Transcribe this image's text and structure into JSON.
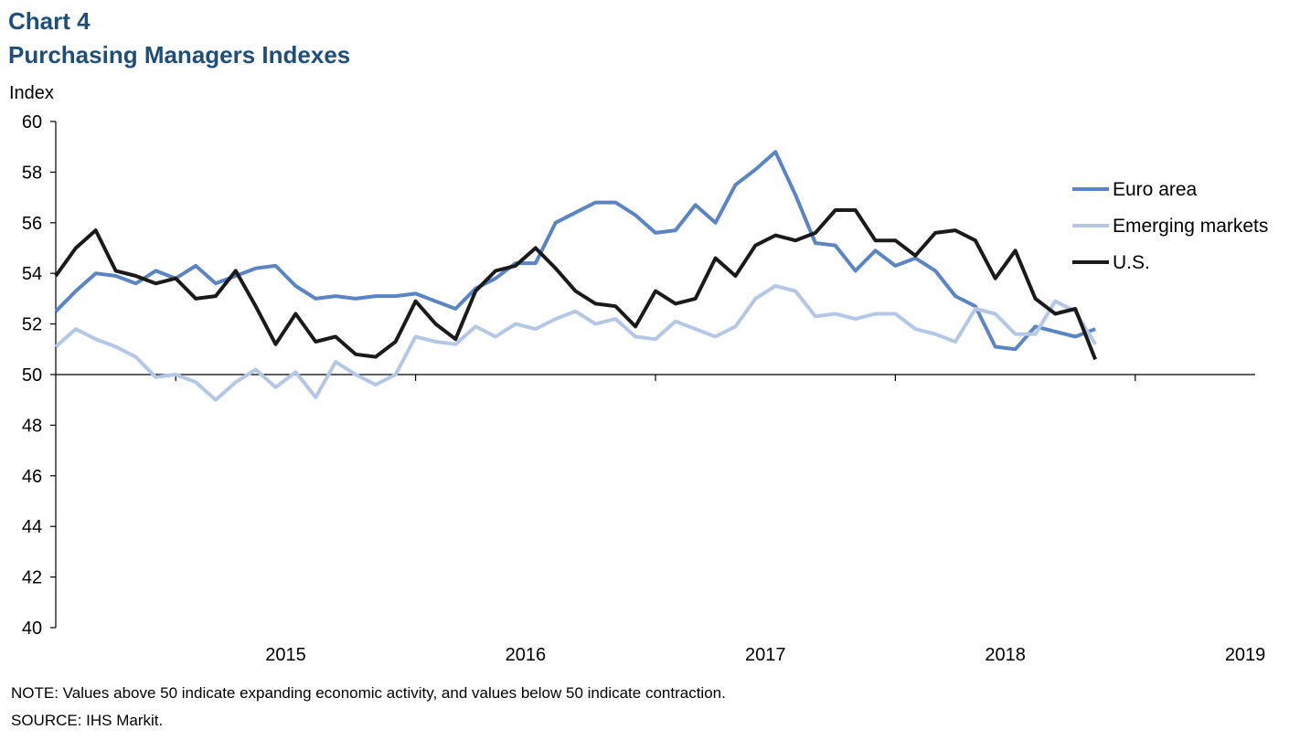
{
  "header": {
    "chart_number": "Chart 4",
    "title": "Purchasing Managers Indexes"
  },
  "footer": {
    "note": "NOTE: Values above 50 indicate expanding economic activity, and values below 50 indicate contraction.",
    "source": "SOURCE: IHS Markit."
  },
  "chart_data": {
    "type": "line",
    "title": "Purchasing Managers Indexes",
    "ylabel": "Index",
    "ylim": [
      40,
      60
    ],
    "yticks": [
      40,
      42,
      44,
      46,
      48,
      50,
      52,
      54,
      56,
      58,
      60
    ],
    "x_axis_crosses_at": 50,
    "x_start": "2014-07",
    "x_end": "2019-07",
    "xtick_labels": [
      "2015",
      "2016",
      "2017",
      "2018",
      "2019"
    ],
    "legend_position": "right",
    "grid": false,
    "series": [
      {
        "name": "Euro area",
        "color": "#5b84c4",
        "values": [
          52.5,
          53.3,
          54.0,
          53.9,
          53.6,
          54.1,
          53.8,
          54.3,
          53.6,
          53.9,
          54.2,
          54.3,
          53.5,
          53.0,
          53.1,
          53.0,
          53.1,
          53.1,
          53.2,
          52.9,
          52.6,
          53.4,
          53.8,
          54.4,
          54.4,
          56.0,
          56.4,
          56.8,
          56.8,
          56.3,
          55.6,
          55.7,
          56.7,
          56.0,
          57.5,
          58.1,
          58.8,
          57.1,
          55.2,
          55.1,
          54.1,
          54.9,
          54.3,
          54.6,
          54.1,
          53.1,
          52.7,
          51.1,
          51.0,
          51.9,
          51.7,
          51.5,
          51.8
        ]
      },
      {
        "name": "Emerging markets",
        "color": "#b4c7e7",
        "values": [
          51.1,
          51.8,
          51.4,
          51.1,
          50.7,
          49.9,
          50.0,
          49.7,
          49.0,
          49.7,
          50.2,
          49.5,
          50.1,
          49.1,
          50.5,
          50.0,
          49.6,
          50.0,
          51.5,
          51.3,
          51.2,
          51.9,
          51.5,
          52.0,
          51.8,
          52.2,
          52.5,
          52.0,
          52.2,
          51.5,
          51.4,
          52.1,
          51.8,
          51.5,
          51.9,
          53.0,
          53.5,
          53.3,
          52.3,
          52.4,
          52.2,
          52.4,
          52.4,
          51.8,
          51.6,
          51.3,
          52.6,
          52.4,
          51.6,
          51.6,
          52.9,
          52.5,
          51.2
        ]
      },
      {
        "name": "U.S.",
        "color": "#1a1a1a",
        "values": [
          53.9,
          55.0,
          55.7,
          54.1,
          53.9,
          53.6,
          53.8,
          53.0,
          53.1,
          54.1,
          52.7,
          51.2,
          52.4,
          51.3,
          51.5,
          50.8,
          50.7,
          51.3,
          52.9,
          52.0,
          51.4,
          53.3,
          54.1,
          54.3,
          55.0,
          54.2,
          53.3,
          52.8,
          52.7,
          51.9,
          53.3,
          52.8,
          53.0,
          54.6,
          53.9,
          55.1,
          55.5,
          55.3,
          55.6,
          56.5,
          56.5,
          55.3,
          55.3,
          54.7,
          55.6,
          55.7,
          55.3,
          53.8,
          54.9,
          53.0,
          52.4,
          52.6,
          50.6
        ]
      }
    ]
  }
}
